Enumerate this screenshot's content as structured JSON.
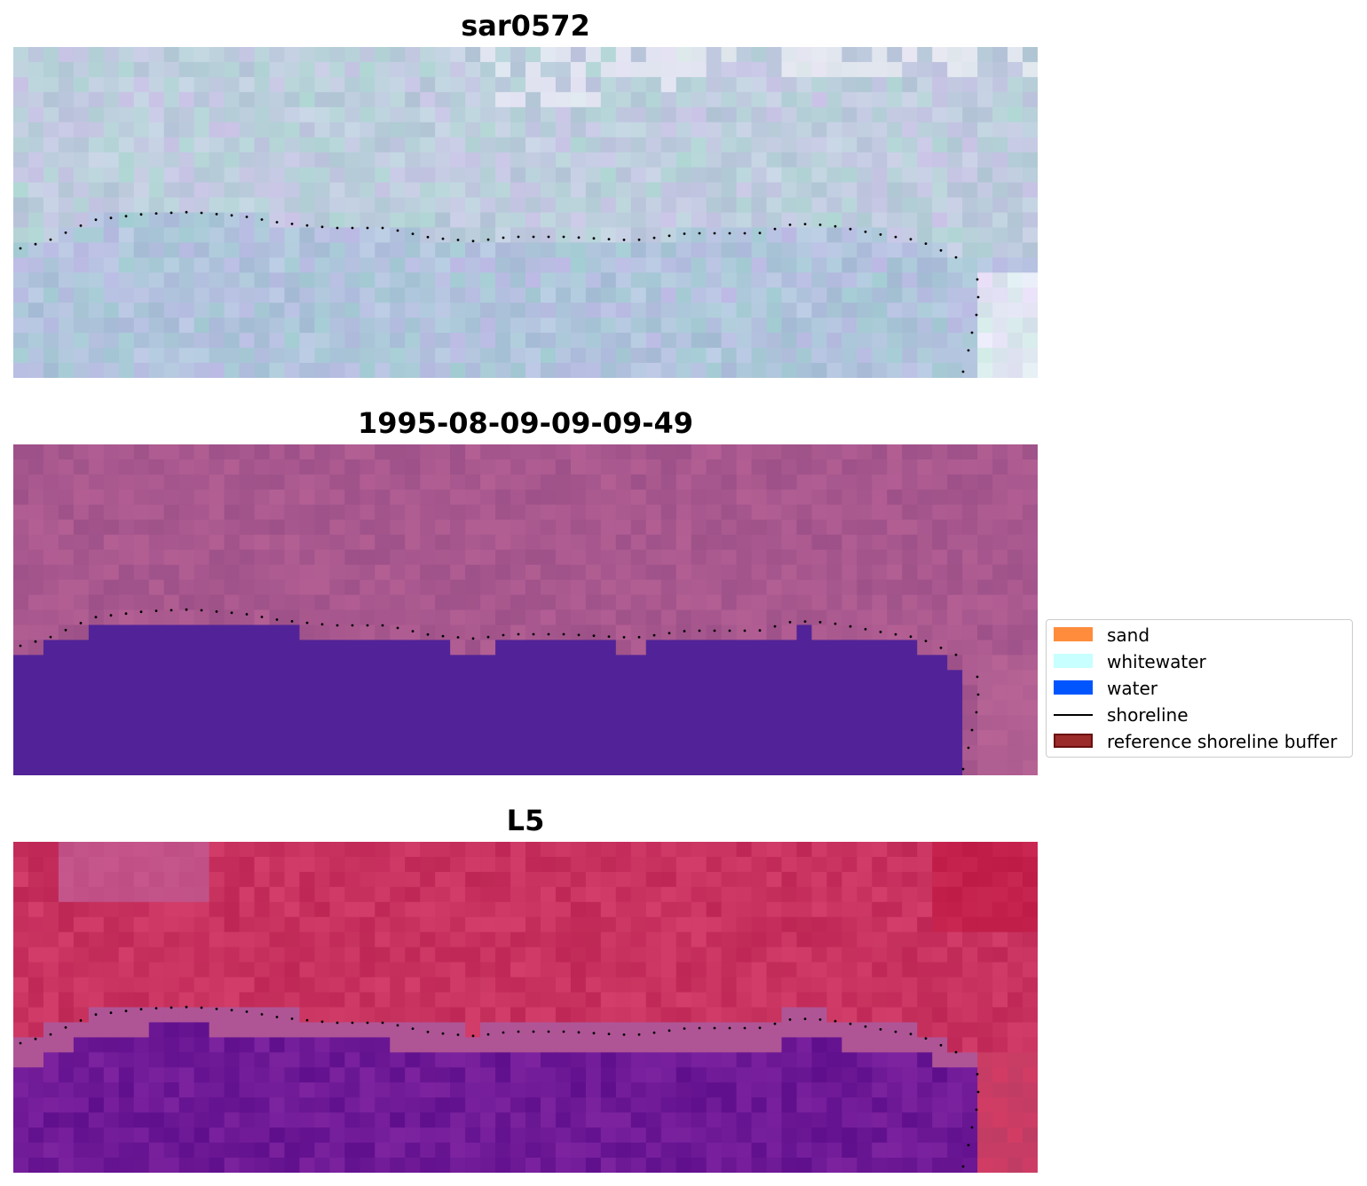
{
  "figure": {
    "panels": [
      {
        "title": "sar0572",
        "kind": "rgb"
      },
      {
        "title": "1995-08-09-09-09-49",
        "kind": "classified"
      },
      {
        "title": "L5",
        "kind": "index"
      }
    ],
    "legend": {
      "items": [
        {
          "label": "sand",
          "type": "patch",
          "color": "#ff8c3c"
        },
        {
          "label": "whitewater",
          "type": "patch",
          "color": "#c8ffff"
        },
        {
          "label": "water",
          "type": "patch",
          "color": "#0055ff"
        },
        {
          "label": "shoreline",
          "type": "line",
          "color": "#000000"
        },
        {
          "label": "reference shoreline buffer",
          "type": "patch",
          "color": "#9b2a2a",
          "edge": "#6a0f0f"
        }
      ]
    },
    "colors": {
      "classified_water": "#522398",
      "classified_land": "#a8588e",
      "index_water": "#6a1496",
      "index_land": "#c2325a",
      "rgb_base": "#bccbe0",
      "shoreline_dots": "#000000"
    }
  }
}
